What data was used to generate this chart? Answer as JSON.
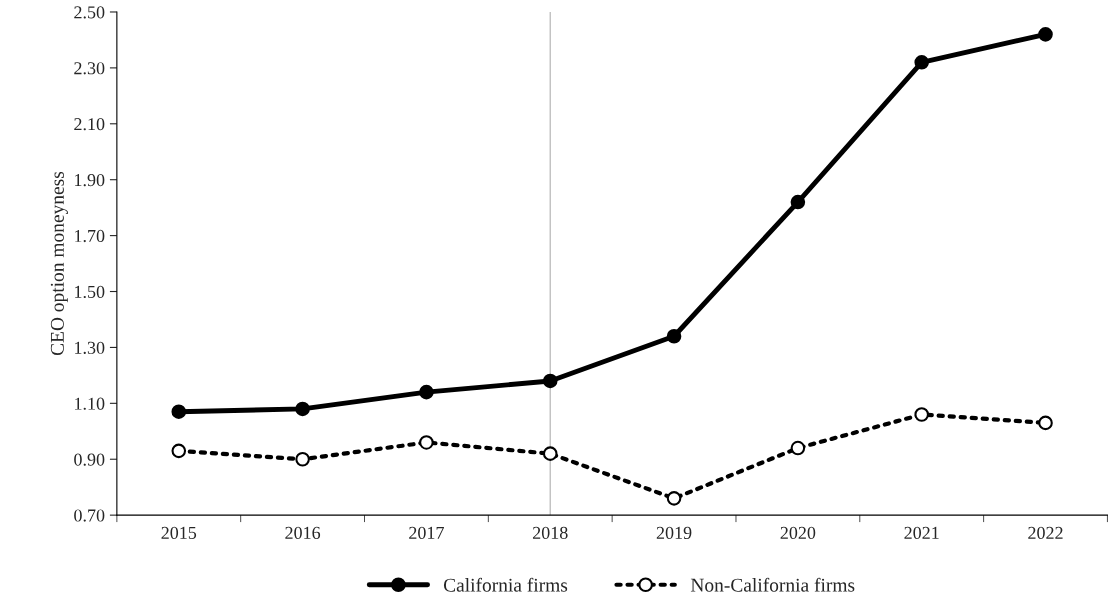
{
  "chart_data": {
    "type": "line",
    "ylabel": "CEO option moneyness",
    "categories": [
      "2015",
      "2016",
      "2017",
      "2018",
      "2019",
      "2020",
      "2021",
      "2022"
    ],
    "series": [
      {
        "name": "California firms",
        "color": "#000000",
        "values": [
          1.07,
          1.08,
          1.14,
          1.18,
          1.34,
          1.82,
          2.32,
          2.42
        ],
        "line_style": "solid",
        "marker": "circle"
      },
      {
        "name": "Non-California firms",
        "color": "#000000",
        "values": [
          0.93,
          0.9,
          0.96,
          0.92,
          0.76,
          0.94,
          1.06,
          1.03
        ],
        "line_style": "dotted",
        "marker": "circle"
      }
    ],
    "ylim": [
      0.7,
      2.5
    ],
    "yticks": [
      {
        "value": 0.7,
        "label": "0.70"
      },
      {
        "value": 0.9,
        "label": "0.90"
      },
      {
        "value": 1.1,
        "label": "1.10"
      },
      {
        "value": 1.3,
        "label": "1.30"
      },
      {
        "value": 1.5,
        "label": "1.50"
      },
      {
        "value": 1.7,
        "label": "1.70"
      },
      {
        "value": 1.9,
        "label": "1.90"
      },
      {
        "value": 2.1,
        "label": "2.10"
      },
      {
        "value": 2.3,
        "label": "2.30"
      },
      {
        "value": 2.5,
        "label": "2.50"
      }
    ],
    "ref_lines": [
      {
        "axis": "x",
        "value": "2018",
        "color": "#bfbfbf"
      }
    ],
    "grid": false,
    "legend": "bottom"
  }
}
